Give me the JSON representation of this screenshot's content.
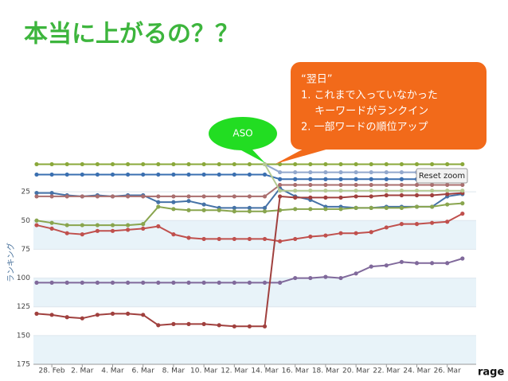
{
  "slide_title": "本当に上がるの？？",
  "callout": {
    "lines": [
      "“翌日”",
      "1. これまで入っていなかった",
      "　 キーワードがランクイン",
      "2. 一部ワードの順位アップ"
    ]
  },
  "badge": "ASO",
  "footer_fragment": "rage",
  "chart_data": {
    "type": "line",
    "y_label": "ランキング",
    "reset_zoom": "Reset zoom",
    "categories": [
      null,
      "28. Feb",
      null,
      "2. Mar",
      null,
      "4. Mar",
      null,
      "6. Mar",
      null,
      "8. Mar",
      null,
      "10. Mar",
      null,
      "12. Mar",
      null,
      "14. Mar",
      null,
      "16. Mar",
      null,
      "18. Mar",
      null,
      "20. Mar",
      null,
      "22. Mar",
      null,
      "24. Mar",
      null,
      "26. Mar",
      null
    ],
    "ylim": [
      0,
      175
    ],
    "y_reversed": true,
    "yticks": [
      25,
      50,
      75,
      100,
      125,
      150,
      175
    ],
    "alternate_bands": true,
    "series": [
      {
        "name": "s1",
        "color": "#8aa83a",
        "values": [
          1,
          1,
          1,
          1,
          1,
          1,
          1,
          1,
          1,
          1,
          1,
          1,
          1,
          1,
          1,
          1,
          1,
          1,
          1,
          1,
          1,
          1,
          1,
          1,
          1,
          1,
          1,
          1,
          1
        ]
      },
      {
        "name": "s2",
        "color": "#3a6fb0",
        "values": [
          10,
          10,
          10,
          10,
          10,
          10,
          10,
          10,
          10,
          10,
          10,
          10,
          10,
          10,
          10,
          10,
          14,
          14,
          14,
          14,
          14,
          14,
          14,
          14,
          14,
          14,
          14,
          14,
          14
        ]
      },
      {
        "name": "s3",
        "color": "#4572a7",
        "values": [
          26,
          26,
          28,
          29,
          28,
          29,
          28,
          28,
          34,
          34,
          33,
          36,
          39,
          39,
          39,
          39,
          22,
          29,
          32,
          38,
          38,
          39,
          39,
          38,
          38,
          38,
          38,
          29,
          27
        ]
      },
      {
        "name": "s4",
        "color": "#aa6e6e",
        "values": [
          29,
          29,
          29,
          29,
          29,
          29,
          29,
          29,
          29,
          29,
          29,
          29,
          29,
          29,
          29,
          29,
          19,
          19,
          19,
          19,
          19,
          19,
          19,
          19,
          19,
          19,
          19,
          19,
          19
        ]
      },
      {
        "name": "s5",
        "color": "#89a54e",
        "values": [
          50,
          52,
          54,
          54,
          54,
          54,
          54,
          53,
          38,
          40,
          41,
          41,
          41,
          42,
          42,
          42,
          41,
          40,
          40,
          40,
          40,
          39,
          39,
          39,
          39,
          38,
          38,
          36,
          35
        ]
      },
      {
        "name": "s6",
        "color": "#c0504d",
        "values": [
          54,
          57,
          61,
          62,
          59,
          59,
          58,
          57,
          55,
          62,
          65,
          66,
          66,
          66,
          66,
          66,
          68,
          66,
          64,
          63,
          61,
          61,
          60,
          56,
          53,
          53,
          52,
          51,
          44
        ]
      },
      {
        "name": "s7",
        "color": "#80699b",
        "values": [
          104,
          104,
          104,
          104,
          104,
          104,
          104,
          104,
          104,
          104,
          104,
          104,
          104,
          104,
          104,
          104,
          104,
          100,
          100,
          99,
          100,
          96,
          90,
          89,
          86,
          87,
          87,
          87,
          83
        ]
      },
      {
        "name": "s8",
        "color": "#a0403e",
        "values": [
          131,
          132,
          134,
          135,
          132,
          131,
          131,
          132,
          141,
          140,
          140,
          140,
          141,
          142,
          142,
          142,
          29,
          30,
          30,
          30,
          30,
          29,
          29,
          28,
          28,
          28,
          28,
          27,
          26
        ]
      },
      {
        "name": "s9",
        "color": "#92a8cd",
        "values": [
          null,
          null,
          null,
          null,
          null,
          null,
          null,
          null,
          null,
          null,
          null,
          null,
          null,
          null,
          null,
          1,
          8,
          8,
          8,
          8,
          8,
          8,
          8,
          8,
          8,
          8,
          8,
          8,
          8
        ]
      },
      {
        "name": "s10",
        "color": "#b5ca92",
        "values": [
          null,
          null,
          null,
          null,
          null,
          null,
          null,
          null,
          null,
          null,
          null,
          null,
          null,
          null,
          null,
          1,
          24,
          24,
          24,
          24,
          24,
          24,
          24,
          24,
          24,
          24,
          24,
          24,
          24
        ]
      }
    ]
  }
}
